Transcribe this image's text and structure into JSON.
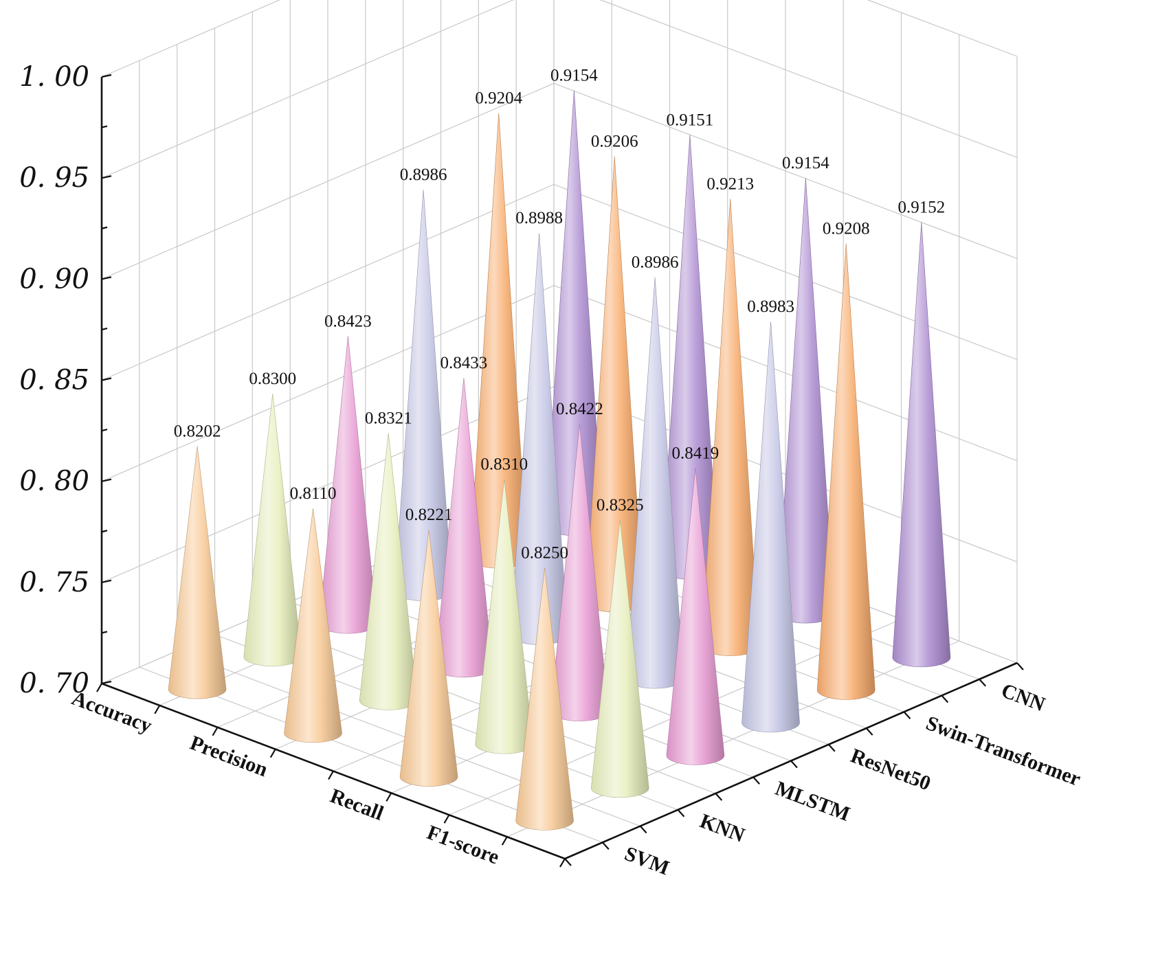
{
  "chart_data": {
    "type": "bar3d-cone",
    "zlim": [
      0.7,
      1.0
    ],
    "z_ticks": [
      "0.70",
      "0.75",
      "0.80",
      "0.85",
      "0.90",
      "0.95",
      "1.00"
    ],
    "metrics": [
      "Accuracy",
      "Precision",
      "Recall",
      "F1-score"
    ],
    "models": [
      "SVM",
      "KNN",
      "MLSTM",
      "ResNet50",
      "Swin-Transformer",
      "CNN"
    ],
    "series": [
      {
        "name": "SVM",
        "color": "#f8c995",
        "values": [
          0.8202,
          0.811,
          0.8221,
          0.825
        ]
      },
      {
        "name": "KNN",
        "color": "#e6edba",
        "values": [
          0.83,
          0.8321,
          0.831,
          0.8325
        ]
      },
      {
        "name": "MLSTM",
        "color": "#e79ad2",
        "values": [
          0.8423,
          0.8433,
          0.8422,
          0.8419
        ]
      },
      {
        "name": "ResNet50",
        "color": "#c3c4e4",
        "values": [
          0.8986,
          0.8988,
          0.8986,
          0.8983
        ]
      },
      {
        "name": "Swin-Transformer",
        "color": "#f8aa6a",
        "values": [
          0.9204,
          0.9206,
          0.9213,
          0.9208
        ]
      },
      {
        "name": "CNN",
        "color": "#ac8cd0",
        "values": [
          0.9154,
          0.9151,
          0.9154,
          0.9152
        ]
      }
    ],
    "grid": true
  }
}
